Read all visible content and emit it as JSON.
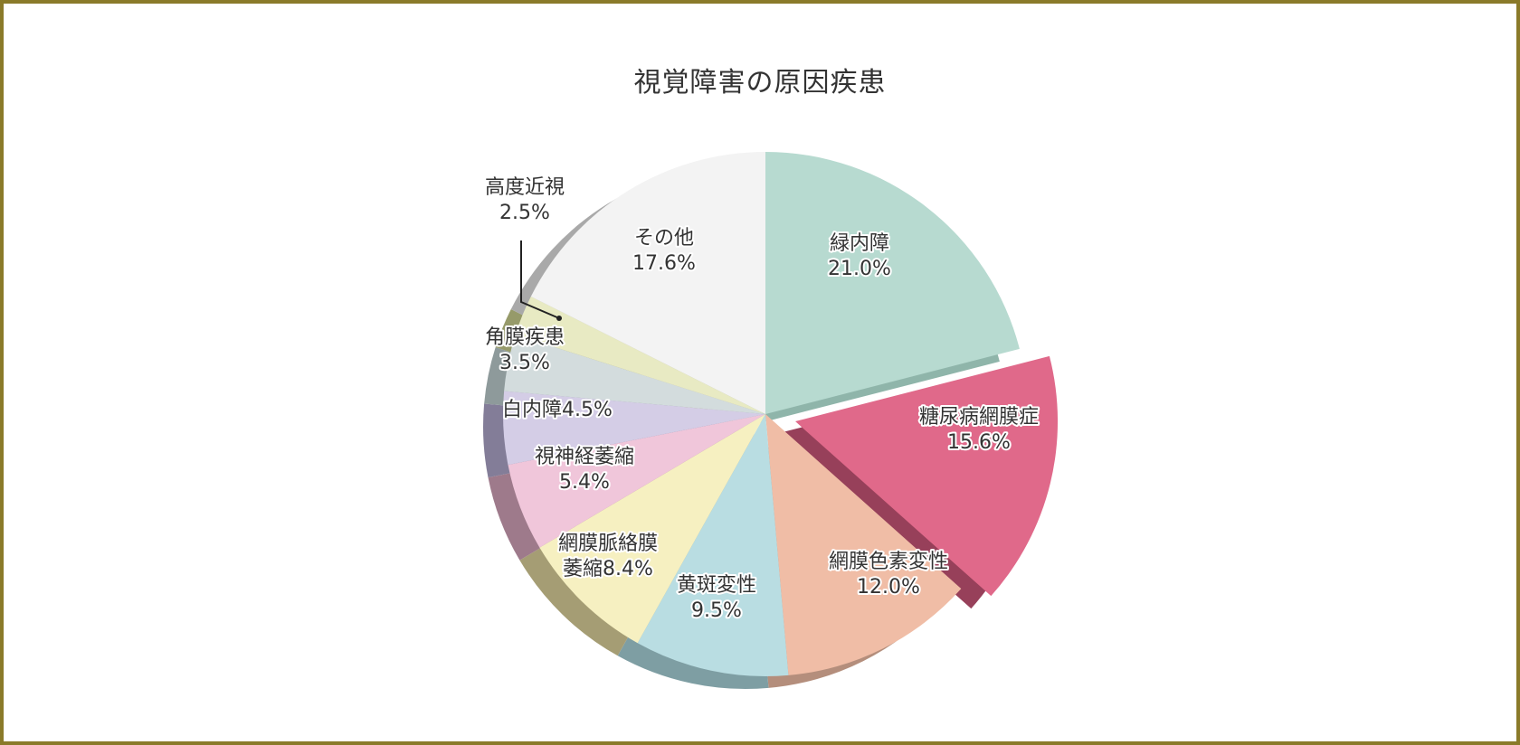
{
  "chart_data": {
    "type": "pie",
    "title": "視覚障害の原因疾患",
    "slices": [
      {
        "label": "緑内障",
        "value": 21.0,
        "value_label": "21.0%",
        "color": "#b7dad0",
        "side_color": "#8fb5aa",
        "exploded": false
      },
      {
        "label": "糖尿病網膜症",
        "value": 15.6,
        "value_label": "15.6%",
        "color": "#e0698a",
        "side_color": "#97405a",
        "exploded": true
      },
      {
        "label": "網膜色素変性",
        "value": 12.0,
        "value_label": "12.0%",
        "color": "#f0bda6",
        "side_color": "#b48e7c",
        "exploded": false
      },
      {
        "label": "黄斑変性",
        "value": 9.5,
        "value_label": "9.5%",
        "color": "#b9dde2",
        "side_color": "#7e9ea3",
        "exploded": false
      },
      {
        "label": "網膜脈絡膜萎縮",
        "value": 8.4,
        "value_label": "8.4%",
        "color": "#f6f0c1",
        "side_color": "#a59d74",
        "exploded": false
      },
      {
        "label": "視神経萎縮",
        "value": 5.4,
        "value_label": "5.4%",
        "color": "#f0c6da",
        "side_color": "#9e7a8b",
        "exploded": false
      },
      {
        "label": "白内障",
        "value": 4.5,
        "value_label": "4.5%",
        "color": "#d4cde6",
        "side_color": "#837d98",
        "exploded": false
      },
      {
        "label": "角膜疾患",
        "value": 3.5,
        "value_label": "3.5%",
        "color": "#d3dcdd",
        "side_color": "#8e9a9b",
        "exploded": false
      },
      {
        "label": "高度近視",
        "value": 2.5,
        "value_label": "2.5%",
        "color": "#e8eac3",
        "side_color": "#969a6a",
        "exploded": false
      },
      {
        "label": "その他",
        "value": 17.6,
        "value_label": "17.6%",
        "color": "#f3f3f3",
        "side_color": "#a9a9a9",
        "exploded": false
      }
    ],
    "legend": "none"
  }
}
